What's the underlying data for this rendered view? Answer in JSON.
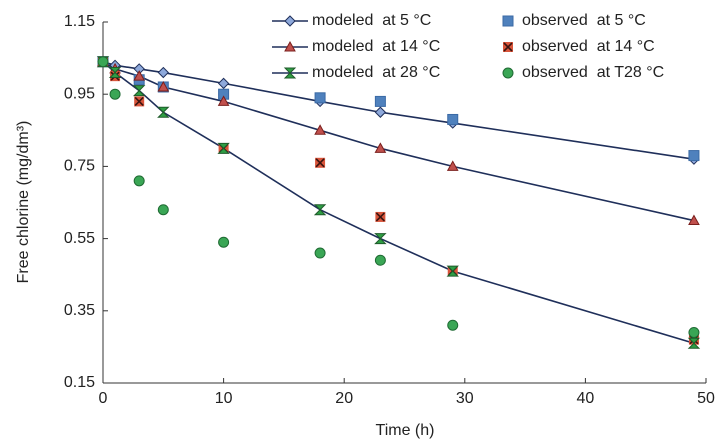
{
  "chart_data": {
    "type": "line",
    "x_label": "Time (h)",
    "y_label": "Free chlorine (mg/dm³)",
    "x": [
      0,
      1,
      3,
      5,
      10,
      18,
      23,
      29,
      49
    ],
    "series": [
      {
        "name": "modeled  at 5 °C",
        "color": "#1f2f5a",
        "marker": "diamond",
        "marker_color": "#8ea9db",
        "line": true,
        "values": [
          1.04,
          1.03,
          1.02,
          1.01,
          0.98,
          0.93,
          0.9,
          0.87,
          0.77
        ]
      },
      {
        "name": "observed  at 5 °C",
        "color": "#4f81bd",
        "marker": "square",
        "marker_color": "#4f81bd",
        "line": false,
        "values": [
          1.04,
          null,
          0.99,
          0.97,
          0.95,
          0.94,
          0.93,
          0.88,
          0.78
        ]
      },
      {
        "name": "modeled  at 14 °C",
        "color": "#1f2f5a",
        "marker": "triangle",
        "marker_color": "#c0504d",
        "line": true,
        "values": [
          1.04,
          1.02,
          1.0,
          0.97,
          0.93,
          0.85,
          0.8,
          0.75,
          0.6
        ]
      },
      {
        "name": "observed  at 14 °C",
        "color": "#d9553b",
        "marker": "xsquare",
        "marker_color": "#d9553b",
        "line": false,
        "values": [
          1.04,
          1.0,
          0.93,
          null,
          0.8,
          0.76,
          0.61,
          0.46,
          0.27
        ]
      },
      {
        "name": "modeled  at 28 °C",
        "color": "#1f2f5a",
        "marker": "bowtie",
        "marker_color": "#2e9e44",
        "line": true,
        "values": [
          1.04,
          1.01,
          0.96,
          0.9,
          0.8,
          0.63,
          0.55,
          0.46,
          0.26
        ]
      },
      {
        "name": "observed  at T28 °C",
        "color": "#3aa655",
        "marker": "circle",
        "marker_color": "#3aa655",
        "line": false,
        "values": [
          1.04,
          0.95,
          0.71,
          0.63,
          0.54,
          0.51,
          0.49,
          0.31,
          0.29
        ]
      }
    ],
    "xlim": [
      0,
      50
    ],
    "xticks": [
      0,
      10,
      20,
      30,
      40,
      50
    ],
    "ylim": [
      0.15,
      1.15
    ],
    "yticks": [
      0.15,
      0.35,
      0.55,
      0.75,
      0.95,
      1.15
    ],
    "grid": false,
    "legend": "top-right"
  }
}
